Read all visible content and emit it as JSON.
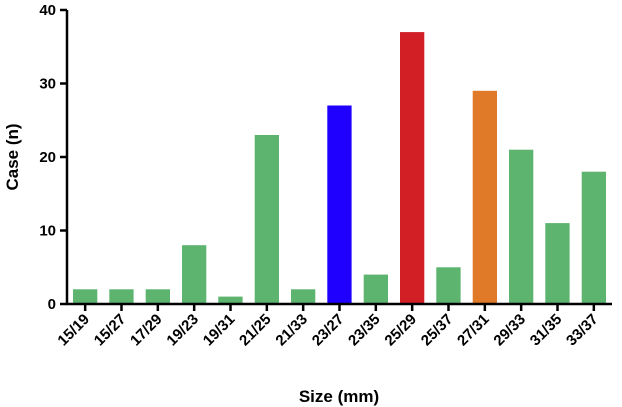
{
  "chart_data": {
    "type": "bar",
    "title": "",
    "xlabel": "Size (mm)",
    "ylabel": "Case (n)",
    "ylim": [
      0,
      40
    ],
    "yticks": [
      0,
      10,
      20,
      30,
      40
    ],
    "grid": false,
    "categories": [
      "15/19",
      "15/27",
      "17/29",
      "19/23",
      "19/31",
      "21/25",
      "21/33",
      "23/27",
      "23/35",
      "25/29",
      "25/37",
      "27/31",
      "29/33",
      "31/35",
      "33/37"
    ],
    "values": [
      2,
      2,
      2,
      8,
      1,
      23,
      2,
      27,
      4,
      37,
      5,
      29,
      21,
      11,
      18
    ],
    "colors": [
      "#5cb46e",
      "#5cb46e",
      "#5cb46e",
      "#5cb46e",
      "#5cb46e",
      "#5cb46e",
      "#5cb46e",
      "#1f00ff",
      "#5cb46e",
      "#d21f26",
      "#5cb46e",
      "#e07a28",
      "#5cb46e",
      "#5cb46e",
      "#5cb46e"
    ]
  }
}
